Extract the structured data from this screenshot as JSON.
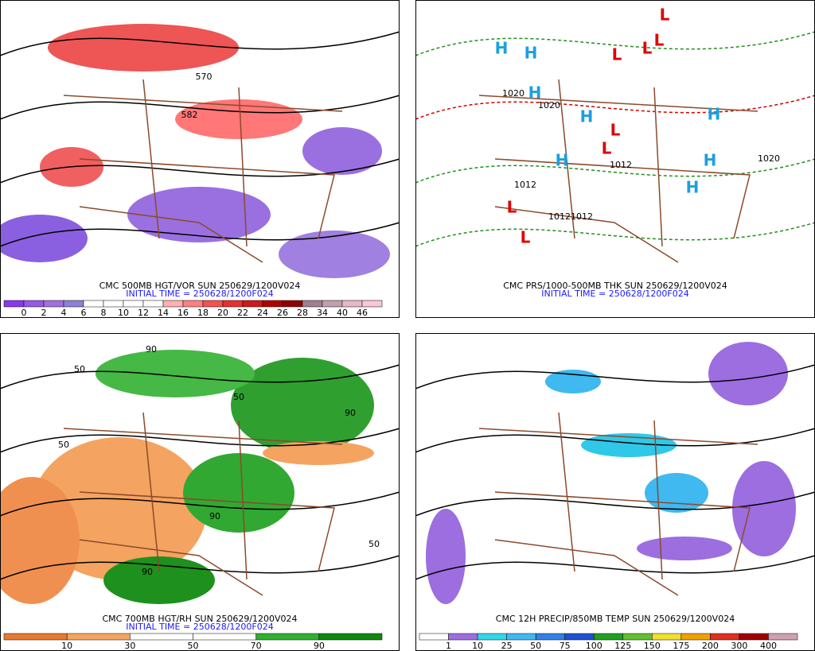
{
  "panels": [
    {
      "title": "CMC 500MB HGT/VOR SUN 250629/1200V024",
      "initial_time": "INITIAL TIME = 250628/1200F024",
      "colorbar": {
        "labels": [
          "0",
          "2",
          "4",
          "6",
          "8",
          "10",
          "12",
          "14",
          "16",
          "18",
          "20",
          "22",
          "24",
          "26",
          "28",
          "34",
          "40",
          "46"
        ],
        "colors": [
          "#8a38f0",
          "#9858e8",
          "#a070e0",
          "#8e80d8",
          "#ffffff",
          "#ffffff",
          "#ffffff",
          "#ffffff",
          "#ffb0b0",
          "#ff8080",
          "#f85050",
          "#e83030",
          "#d01818",
          "#b00000",
          "#900000",
          "#a08090",
          "#c0a0b0",
          "#e8b8c8",
          "#f8c8d8"
        ]
      },
      "labels": [
        "570",
        "582"
      ]
    },
    {
      "title": "CMC PRS/1000-500MB THK SUN 250629/1200V024",
      "initial_time": "INITIAL TIME = 250628/1200F024",
      "labels": [
        "H",
        "H",
        "H",
        "H",
        "H",
        "H",
        "H",
        "H",
        "L",
        "L",
        "L",
        "L",
        "L",
        "L",
        "L",
        "L",
        "1020",
        "1020",
        "1012",
        "1012",
        "1012",
        "1012",
        "1020"
      ]
    },
    {
      "title": "CMC 700MB HGT/RH SUN 250629/1200V024",
      "initial_time": "INITIAL TIME = 250628/1200F024",
      "colorbar": {
        "labels": [
          "10",
          "30",
          "50",
          "70",
          "90"
        ],
        "colors": [
          "#e87a30",
          "#f4a460",
          "#ffffff",
          "#ffffff",
          "#30b030",
          "#108810"
        ]
      },
      "labels": [
        "50",
        "90",
        "50",
        "90",
        "50",
        "90",
        "50",
        "90"
      ]
    },
    {
      "title": "CMC 12H PRECIP/850MB TEMP SUN 250629/1200V024",
      "initial_time": "",
      "colorbar": {
        "labels": [
          "1",
          "10",
          "25",
          "50",
          "75",
          "100",
          "125",
          "150",
          "175",
          "200",
          "300",
          "400"
        ],
        "colors": [
          "#ffffff",
          "#9c6ee0",
          "#30d8e8",
          "#40b8f0",
          "#3080e8",
          "#2050d0",
          "#20a020",
          "#60c030",
          "#f0e030",
          "#f0a000",
          "#e03020",
          "#a00000",
          "#d0a0b0"
        ]
      },
      "labels": []
    }
  ]
}
